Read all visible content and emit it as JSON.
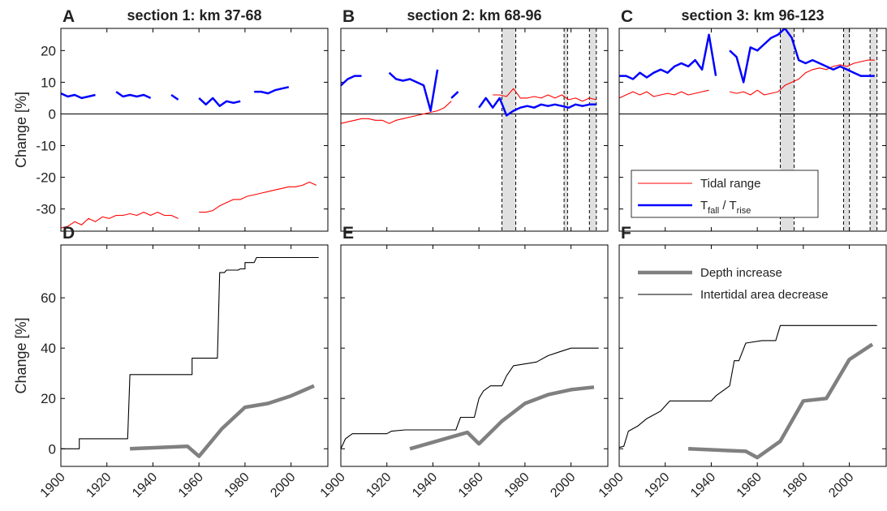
{
  "chart_data": [
    {
      "type": "line",
      "panel": "A",
      "title": "section 1: km 37-68",
      "ylabel": "Change [%]",
      "x": [
        1900,
        1903,
        1906,
        1909,
        1912,
        1915,
        1918,
        1921,
        1924,
        1927,
        1930,
        1933,
        1936,
        1939,
        1942,
        1945,
        1948,
        1951,
        1954,
        1957,
        1960,
        1963,
        1966,
        1969,
        1972,
        1975,
        1978,
        1981,
        1984,
        1987,
        1990,
        1993,
        1996,
        1999,
        2002,
        2005,
        2008,
        2011
      ],
      "xlim": [
        1900,
        2016
      ],
      "xticks": [
        1900,
        1920,
        1940,
        1960,
        1980,
        2000
      ],
      "ylim": [
        -37,
        27
      ],
      "yticks": [
        -30,
        -20,
        -10,
        0,
        10,
        20
      ],
      "series": [
        {
          "color": "#ff0000",
          "values": [
            -36,
            -35.5,
            -34,
            -35,
            -33,
            -34,
            -32.5,
            -33,
            -32,
            -32,
            -31.5,
            -32,
            -31,
            -32,
            -31,
            -32,
            -32,
            -33,
            null,
            null,
            -31,
            -31,
            -30.5,
            -29,
            -28,
            -27,
            -27,
            -26,
            -25.5,
            -25,
            -24.5,
            -24,
            -23.5,
            -23,
            -23,
            -22.5,
            -21.5,
            -22.5
          ]
        },
        {
          "color": "#0000ff",
          "values": [
            6.5,
            5.5,
            6,
            5,
            5.5,
            6,
            null,
            null,
            7,
            5.5,
            6,
            5.5,
            6,
            5,
            null,
            null,
            6,
            4.5,
            null,
            null,
            5,
            3,
            5,
            2.5,
            4,
            3.5,
            4,
            null,
            7,
            7,
            6.5,
            7.5,
            8,
            8.5,
            null,
            null,
            null,
            null
          ]
        }
      ]
    },
    {
      "type": "line",
      "panel": "B",
      "title": "section 2: km 68-96",
      "x": [
        1900,
        1903,
        1906,
        1909,
        1912,
        1915,
        1918,
        1921,
        1924,
        1927,
        1930,
        1933,
        1936,
        1939,
        1942,
        1945,
        1948,
        1951,
        1954,
        1957,
        1960,
        1963,
        1966,
        1969,
        1972,
        1975,
        1978,
        1981,
        1984,
        1987,
        1990,
        1993,
        1996,
        1999,
        2002,
        2005,
        2008,
        2011
      ],
      "xlim": [
        1900,
        2016
      ],
      "xticks": [
        1900,
        1920,
        1940,
        1960,
        1980,
        2000
      ],
      "ylim": [
        -37,
        27
      ],
      "yticks": [
        -30,
        -20,
        -10,
        0,
        10,
        20
      ],
      "shaded_periods": [
        [
          1970,
          1976
        ],
        [
          1997,
          1998.5
        ],
        [
          2008,
          2011
        ]
      ],
      "series": [
        {
          "color": "#ff0000",
          "values": [
            -3,
            -2.5,
            -2,
            -1.5,
            -1.5,
            -2,
            -2,
            -3,
            -2,
            -1.5,
            -1,
            -0.5,
            0,
            0.5,
            1,
            2,
            4,
            null,
            null,
            null,
            null,
            null,
            6,
            6,
            5.5,
            8,
            5,
            5,
            5.5,
            5,
            6,
            5,
            6,
            4.5,
            5,
            4,
            5,
            4.5
          ]
        },
        {
          "color": "#0000ff",
          "values": [
            9,
            11,
            12,
            12,
            null,
            null,
            null,
            13,
            11,
            10.5,
            11,
            10,
            9,
            1,
            14,
            null,
            5,
            7,
            null,
            null,
            2,
            5,
            2,
            5,
            -0.5,
            1,
            2,
            2.5,
            2,
            3,
            2.5,
            3,
            2.5,
            2,
            3,
            2.5,
            3,
            3
          ]
        }
      ]
    },
    {
      "type": "line",
      "panel": "C",
      "title": "section 3: km 96-123",
      "x": [
        1900,
        1903,
        1906,
        1909,
        1912,
        1915,
        1918,
        1921,
        1924,
        1927,
        1930,
        1933,
        1936,
        1939,
        1942,
        1945,
        1948,
        1951,
        1954,
        1957,
        1960,
        1963,
        1966,
        1969,
        1972,
        1975,
        1978,
        1981,
        1984,
        1987,
        1990,
        1993,
        1996,
        1999,
        2002,
        2005,
        2008,
        2011
      ],
      "xlim": [
        1900,
        2016
      ],
      "xticks": [
        1900,
        1920,
        1940,
        1960,
        1980,
        2000
      ],
      "ylim": [
        -37,
        27
      ],
      "yticks": [
        -30,
        -20,
        -10,
        0,
        10,
        20
      ],
      "shaded_periods": [
        [
          1970,
          1976
        ],
        [
          1997.5,
          2000
        ],
        [
          2009,
          2012
        ]
      ],
      "series": [
        {
          "name": "Tidal range",
          "color": "#ff0000",
          "values": [
            5,
            6,
            7,
            6,
            7,
            5.5,
            6,
            6.5,
            6,
            7,
            6,
            6.5,
            7,
            7.5,
            null,
            null,
            7,
            6.5,
            7,
            6,
            7.5,
            6,
            6.5,
            7,
            9,
            10,
            11,
            13,
            14,
            14.5,
            14,
            15,
            15.5,
            15,
            16,
            16.5,
            17,
            17
          ]
        },
        {
          "name": [
            "T",
            "fall",
            " / T",
            "rise"
          ],
          "color": "#0000ff",
          "values": [
            12,
            12,
            11,
            13,
            11.5,
            13,
            14,
            13,
            15,
            16,
            15,
            17,
            14,
            25,
            12,
            null,
            20,
            18,
            10,
            21,
            20,
            22,
            24,
            25,
            27,
            24,
            17,
            16,
            17,
            16,
            15,
            14,
            15,
            14,
            13,
            12,
            12,
            12
          ]
        }
      ]
    },
    {
      "type": "line",
      "panel": "D",
      "ylabel": "Change [%]",
      "xlim": [
        1900,
        2016
      ],
      "xticks": [
        1900,
        1920,
        1940,
        1960,
        1980,
        2000
      ],
      "ylim": [
        -7,
        81
      ],
      "yticks": [
        0,
        20,
        40,
        60
      ],
      "series": [
        {
          "color": "#000000",
          "x": [
            1900,
            1908,
            1908,
            1929,
            1930,
            1957,
            1957,
            1968,
            1969,
            1971,
            1972,
            1977,
            1978,
            1980,
            1980,
            1984,
            1985,
            2012
          ],
          "values": [
            0,
            0,
            4,
            4,
            29.5,
            29.5,
            36,
            36,
            70,
            70,
            71,
            71,
            71.5,
            71.5,
            74,
            74,
            76,
            76
          ]
        },
        {
          "color": "#808080",
          "x": [
            1930,
            1955,
            1960,
            1970,
            1980,
            1990,
            2000,
            2010
          ],
          "values": [
            0,
            1,
            -3,
            8,
            16.5,
            18,
            21,
            25
          ]
        }
      ]
    },
    {
      "type": "line",
      "panel": "E",
      "xlim": [
        1900,
        2016
      ],
      "xticks": [
        1900,
        1920,
        1940,
        1960,
        1980,
        2000
      ],
      "ylim": [
        -7,
        81
      ],
      "yticks": [
        0,
        20,
        40,
        60
      ],
      "series": [
        {
          "color": "#000000",
          "x": [
            1900,
            1902,
            1905,
            1920,
            1922,
            1928,
            1950,
            1952,
            1958,
            1960,
            1962,
            1965,
            1970,
            1972,
            1975,
            1985,
            1990,
            1995,
            2000,
            2012
          ],
          "values": [
            0,
            4,
            6,
            6,
            7,
            7.5,
            7.5,
            12.5,
            12.5,
            20,
            23,
            25,
            25,
            29,
            33,
            34.5,
            37,
            38.5,
            40,
            40
          ]
        },
        {
          "color": "#808080",
          "x": [
            1930,
            1955,
            1960,
            1970,
            1980,
            1990,
            2000,
            2010
          ],
          "values": [
            0,
            6.5,
            2,
            11,
            18,
            21.5,
            23.5,
            24.5
          ]
        }
      ]
    },
    {
      "type": "line",
      "panel": "F",
      "xlim": [
        1900,
        2016
      ],
      "xticks": [
        1900,
        1920,
        1940,
        1960,
        1980,
        2000
      ],
      "ylim": [
        -7,
        81
      ],
      "yticks": [
        0,
        20,
        40,
        60
      ],
      "series": [
        {
          "name": "Intertidal area decrease",
          "color": "#000000",
          "x": [
            1900,
            1902,
            1904,
            1908,
            1912,
            1918,
            1922,
            1940,
            1942,
            1948,
            1950,
            1952,
            1955,
            1962,
            1968,
            1970,
            2012
          ],
          "values": [
            0.5,
            1,
            7,
            9,
            12,
            15,
            19,
            19,
            21,
            25,
            35,
            35,
            42,
            43,
            43,
            49,
            49
          ]
        },
        {
          "name": "Depth increase",
          "color": "#808080",
          "x": [
            1930,
            1955,
            1960,
            1970,
            1980,
            1990,
            2000,
            2010
          ],
          "values": [
            0,
            -1,
            -3.5,
            3,
            19,
            20,
            35.5,
            41.5
          ]
        }
      ]
    }
  ]
}
